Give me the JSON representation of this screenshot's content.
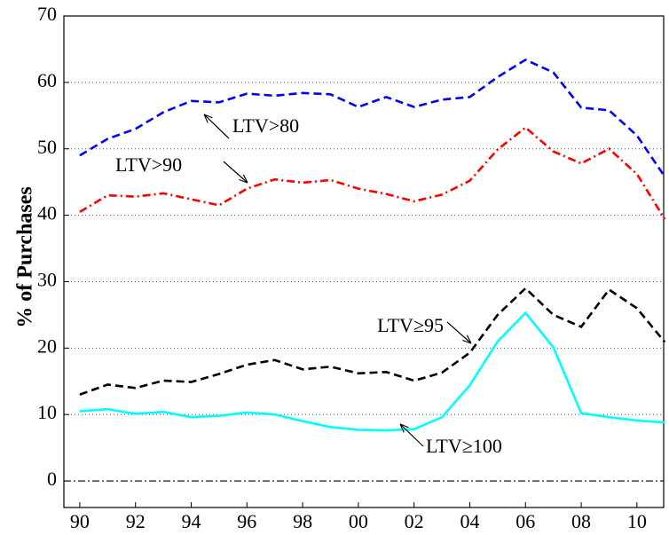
{
  "chart_data": {
    "type": "line",
    "ylabel": "% of Purchases",
    "x": [
      1990,
      1991,
      1992,
      1993,
      1994,
      1995,
      1996,
      1997,
      1998,
      1999,
      2000,
      2001,
      2002,
      2003,
      2004,
      2005,
      2006,
      2007,
      2008,
      2009,
      2010,
      2011
    ],
    "series": [
      {
        "name": "LTV>80",
        "color": "#0000ff",
        "style": "dashed",
        "values": [
          49,
          51.5,
          53,
          55.5,
          57.2,
          57,
          58.3,
          58,
          58.4,
          58.2,
          56.3,
          57.8,
          56.3,
          57.4,
          57.8,
          60.8,
          63.4,
          61.5,
          56.2,
          55.8,
          52,
          45.8
        ]
      },
      {
        "name": "LTV>90",
        "color": "#ff0000",
        "style": "dashdot",
        "values": [
          40.5,
          43,
          42.8,
          43.3,
          42.4,
          41.5,
          44,
          45.4,
          44.9,
          45.3,
          44,
          43.2,
          42.1,
          43.1,
          45.2,
          49.9,
          53.2,
          49.6,
          47.8,
          50,
          46.2,
          39.4
        ]
      },
      {
        "name": "LTV≥95",
        "color": "#000000",
        "style": "dashed",
        "values": [
          13,
          14.5,
          14,
          15.1,
          14.9,
          16.1,
          17.5,
          18.2,
          16.8,
          17.2,
          16.2,
          16.4,
          15.1,
          16.3,
          19.3,
          25,
          29,
          25,
          23.2,
          28.8,
          26,
          20.9
        ]
      },
      {
        "name": "LTV≥100",
        "color": "#00ffff",
        "style": "solid",
        "values": [
          10.5,
          10.8,
          10.1,
          10.4,
          9.6,
          9.8,
          10.3,
          10,
          9,
          8.1,
          7.7,
          7.6,
          7.8,
          9.6,
          14.4,
          21,
          25.3,
          20.1,
          10.2,
          9.6,
          9.1,
          8.8
        ]
      }
    ],
    "xlim": [
      1989.43,
      2010.96
    ],
    "xticks": [
      {
        "value": 1990,
        "label": "90"
      },
      {
        "value": 1992,
        "label": "92"
      },
      {
        "value": 1994,
        "label": "94"
      },
      {
        "value": 1996,
        "label": "96"
      },
      {
        "value": 1998,
        "label": "98"
      },
      {
        "value": 2000,
        "label": "00"
      },
      {
        "value": 2002,
        "label": "02"
      },
      {
        "value": 2004,
        "label": "04"
      },
      {
        "value": 2006,
        "label": "06"
      },
      {
        "value": 2008,
        "label": "08"
      },
      {
        "value": 2010,
        "label": "10"
      }
    ],
    "ylim": [
      -4,
      70
    ],
    "yticks": [
      0,
      10,
      20,
      30,
      40,
      50,
      60,
      70
    ],
    "grid": true,
    "zero_line": true
  }
}
